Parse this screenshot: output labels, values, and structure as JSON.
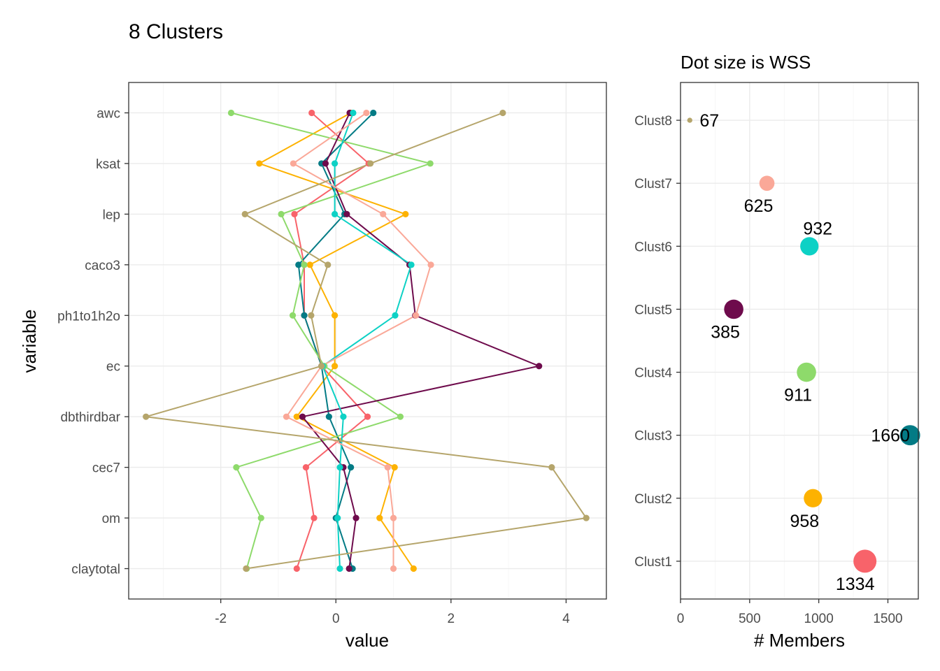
{
  "title": "8 Clusters",
  "chart_data": [
    {
      "type": "line",
      "xlabel": "value",
      "ylabel": "variable",
      "xlim": [
        -3.6,
        4.7
      ],
      "xticks": [
        -2,
        0,
        2,
        4
      ],
      "xtick_labels": [
        "-2",
        "0",
        "2",
        "4"
      ],
      "grid": true,
      "categories": [
        "awc",
        "ksat",
        "lep",
        "caco3",
        "ph1to1h2o",
        "ec",
        "dbthirdbar",
        "cec7",
        "om",
        "claytotal"
      ],
      "series": [
        {
          "color": "#F8636A",
          "values": [
            -0.42,
            0.57,
            -0.72,
            -0.55,
            -0.55,
            -0.25,
            0.55,
            -0.52,
            -0.38,
            -0.68
          ]
        },
        {
          "color": "#FDB201",
          "values": [
            0.26,
            -1.33,
            1.21,
            -0.45,
            -0.02,
            -0.02,
            -0.68,
            1.02,
            0.76,
            1.35
          ]
        },
        {
          "color": "#037B85",
          "values": [
            0.65,
            -0.25,
            0.15,
            -0.65,
            -0.55,
            -0.25,
            -0.12,
            0.26,
            0.0,
            0.29
          ]
        },
        {
          "color": "#8EDA6B",
          "values": [
            -1.82,
            1.64,
            -0.95,
            -0.55,
            -0.75,
            -0.2,
            1.12,
            -1.73,
            -1.3,
            -1.55
          ]
        },
        {
          "color": "#6E0B4C",
          "values": [
            0.24,
            -0.18,
            0.19,
            1.28,
            1.38,
            3.53,
            -0.58,
            0.13,
            0.35,
            0.23
          ]
        },
        {
          "color": "#0DD1C5",
          "values": [
            0.3,
            -0.02,
            -0.02,
            1.31,
            1.03,
            -0.23,
            0.13,
            0.07,
            0.03,
            0.07
          ]
        },
        {
          "color": "#FAA898",
          "values": [
            0.53,
            -0.74,
            0.82,
            1.65,
            1.39,
            -0.25,
            -0.86,
            0.9,
            1.0,
            1.0
          ]
        },
        {
          "color": "#B5A56B",
          "values": [
            2.9,
            0.6,
            -1.58,
            -0.14,
            -0.43,
            -0.25,
            -3.3,
            3.75,
            4.35,
            -1.56
          ]
        }
      ]
    },
    {
      "type": "scatter",
      "title": "Dot size is WSS",
      "xlabel": "# Members",
      "xlim": [
        0,
        1720
      ],
      "xticks": [
        0,
        500,
        1000,
        1500
      ],
      "xtick_labels": [
        "0",
        "500",
        "1000",
        "1500"
      ],
      "grid": true,
      "categories": [
        "Clust8",
        "Clust7",
        "Clust6",
        "Clust5",
        "Clust4",
        "Clust3",
        "Clust2",
        "Clust1"
      ],
      "points": [
        {
          "cluster": "Clust8",
          "members": 67,
          "label": "67",
          "color": "#B5A56B",
          "wss_rel": 0.05
        },
        {
          "cluster": "Clust7",
          "members": 625,
          "label": "625",
          "color": "#FAA898",
          "wss_rel": 0.58
        },
        {
          "cluster": "Clust6",
          "members": 932,
          "label": "932",
          "color": "#0DD1C5",
          "wss_rel": 0.75
        },
        {
          "cluster": "Clust5",
          "members": 385,
          "label": "385",
          "color": "#6E0B4C",
          "wss_rel": 0.8
        },
        {
          "cluster": "Clust4",
          "members": 911,
          "label": "911",
          "color": "#8EDA6B",
          "wss_rel": 0.8
        },
        {
          "cluster": "Clust3",
          "members": 1660,
          "label": "1660",
          "color": "#037B85",
          "wss_rel": 0.85
        },
        {
          "cluster": "Clust2",
          "members": 958,
          "label": "958",
          "color": "#FDB201",
          "wss_rel": 0.75
        },
        {
          "cluster": "Clust1",
          "members": 1334,
          "label": "1334",
          "color": "#F8636A",
          "wss_rel": 1.0
        }
      ]
    }
  ]
}
